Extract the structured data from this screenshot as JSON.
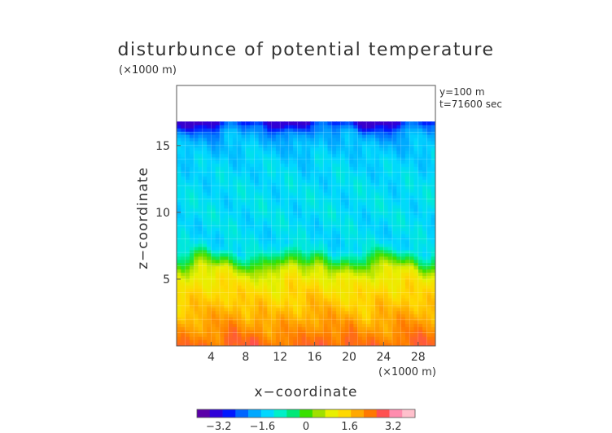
{
  "chart_data": {
    "type": "heatmap",
    "title": "disturbunce of potential temperature",
    "y_unit_label": "(×1000 m)",
    "x_unit_label": "(×1000 m)",
    "xlabel": "x−coordinate",
    "ylabel": "z−coordinate",
    "annotations": [
      "y=100 m",
      "t=71600 sec"
    ],
    "xlim": [
      0,
      30
    ],
    "ylim": [
      0,
      19.5
    ],
    "x_ticks": [
      4,
      8,
      12,
      16,
      20,
      24,
      28
    ],
    "x_tick_labels": [
      "4",
      "8",
      "12",
      "16",
      "20",
      "24",
      "28"
    ],
    "y_ticks": [
      5,
      10,
      15
    ],
    "y_tick_labels": [
      "5",
      "10",
      "15"
    ],
    "data_top": 16.8,
    "colorbar": {
      "range": [
        -4.0,
        4.0
      ],
      "ticks": [
        -3.2,
        -1.6,
        0,
        1.6,
        3.2
      ],
      "tick_labels": [
        "−3.2",
        "−1.6",
        "0",
        "1.6",
        "3.2"
      ],
      "colors": [
        "#5a00a8",
        "#2e00d8",
        "#0018ff",
        "#0066ff",
        "#00a8ff",
        "#00d8ff",
        "#00f0c8",
        "#00e878",
        "#38e000",
        "#a0e000",
        "#e8f000",
        "#ffd800",
        "#ffa800",
        "#ff7800",
        "#ff5050",
        "#ff8cae",
        "#ffc0cc"
      ]
    },
    "profile_z": [
      0,
      1,
      2,
      3,
      4,
      5,
      5.7,
      6.2,
      6.7,
      7.2,
      8,
      10,
      12,
      14,
      15.5,
      16.2,
      16.6,
      16.8
    ],
    "profile_value": [
      2.7,
      2.3,
      2.0,
      1.7,
      1.45,
      1.15,
      0.8,
      0.1,
      -0.5,
      -1.3,
      -1.45,
      -1.4,
      -1.42,
      -1.55,
      -1.85,
      -2.3,
      -3.0,
      -3.6
    ]
  },
  "colors": {
    "axis": "#555555",
    "grid": "#ffffff"
  }
}
